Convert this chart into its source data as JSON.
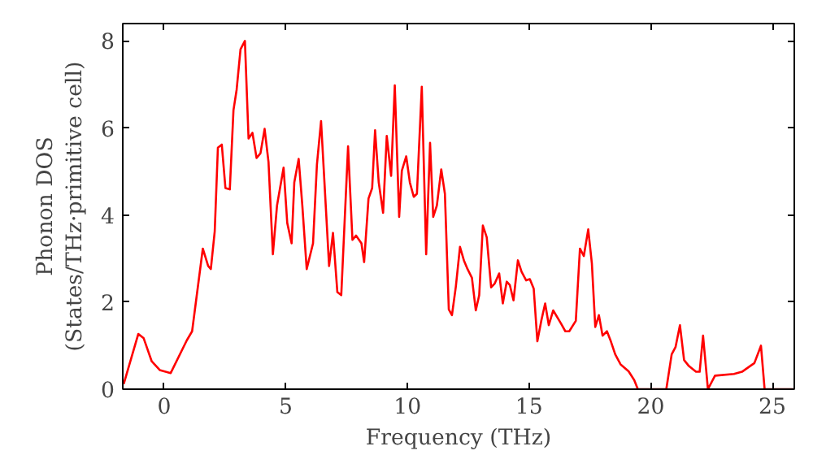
{
  "chart_data": {
    "type": "line",
    "xlabel": "Frequency (THz)",
    "ylabel": "Phonon DOS\n(States/THz·primitive cell)",
    "x": [
      -1.66,
      -1.06,
      -0.84,
      -0.51,
      -0.18,
      0.27,
      0.93,
      1.15,
      1.59,
      1.81,
      1.92,
      2.08,
      2.21,
      2.37,
      2.52,
      2.7,
      2.85,
      2.98,
      3.14,
      3.32,
      3.47,
      3.63,
      3.8,
      3.96,
      4.13,
      4.29,
      4.47,
      4.64,
      4.91,
      5.06,
      5.24,
      5.35,
      5.53,
      5.68,
      5.86,
      6.12,
      6.28,
      6.45,
      6.78,
      6.94,
      7.12,
      7.28,
      7.56,
      7.74,
      7.89,
      8.11,
      8.22,
      8.4,
      8.55,
      8.67,
      8.82,
      9.0,
      9.15,
      9.33,
      9.48,
      9.66,
      9.77,
      9.95,
      10.1,
      10.26,
      10.39,
      10.59,
      10.77,
      10.93,
      11.06,
      11.21,
      11.39,
      11.54,
      11.7,
      11.83,
      11.99,
      12.16,
      12.32,
      12.47,
      12.65,
      12.81,
      12.95,
      13.1,
      13.26,
      13.44,
      13.59,
      13.77,
      13.92,
      14.08,
      14.21,
      14.36,
      14.54,
      14.69,
      14.88,
      15.03,
      15.19,
      15.34,
      15.5,
      15.66,
      15.81,
      15.99,
      16.32,
      16.49,
      16.65,
      16.92,
      17.09,
      17.25,
      17.43,
      17.58,
      17.72,
      17.87,
      18.02,
      18.2,
      18.36,
      18.54,
      18.76,
      19.09,
      19.32,
      19.47,
      20.64,
      20.86,
      21.02,
      21.2,
      21.37,
      21.57,
      21.86,
      22.01,
      22.15,
      22.35,
      22.64,
      23.42,
      23.75,
      24.08,
      24.26,
      24.53,
      24.68,
      25.86
    ],
    "series": [
      {
        "color": "#ff0000",
        "values": [
          0.12,
          1.27,
          1.17,
          0.64,
          0.44,
          0.37,
          1.12,
          1.33,
          3.23,
          2.83,
          2.76,
          3.63,
          5.55,
          5.62,
          4.62,
          4.59,
          6.41,
          6.88,
          7.81,
          8.0,
          5.76,
          5.89,
          5.31,
          5.42,
          5.98,
          5.22,
          3.1,
          4.22,
          5.09,
          3.82,
          3.35,
          4.75,
          5.29,
          4.22,
          2.76,
          3.35,
          5.16,
          6.16,
          2.83,
          3.59,
          2.23,
          2.16,
          5.58,
          3.43,
          3.53,
          3.35,
          2.92,
          4.38,
          4.62,
          5.95,
          4.75,
          4.05,
          5.82,
          4.9,
          6.98,
          3.96,
          5.02,
          5.35,
          4.75,
          4.42,
          4.49,
          6.95,
          3.1,
          5.66,
          3.96,
          4.22,
          5.05,
          4.49,
          1.83,
          1.7,
          2.36,
          3.27,
          2.96,
          2.76,
          2.56,
          1.81,
          2.16,
          3.76,
          3.49,
          2.34,
          2.43,
          2.66,
          1.97,
          2.47,
          2.39,
          2.04,
          2.96,
          2.7,
          2.5,
          2.53,
          2.31,
          1.1,
          1.57,
          1.97,
          1.47,
          1.81,
          1.5,
          1.33,
          1.33,
          1.57,
          3.23,
          3.06,
          3.67,
          2.89,
          1.43,
          1.7,
          1.23,
          1.33,
          1.1,
          0.8,
          0.57,
          0.41,
          0.21,
          0,
          0,
          0.8,
          0.97,
          1.47,
          0.67,
          0.53,
          0.4,
          0.4,
          1.23,
          0,
          0.31,
          0.35,
          0.4,
          0.53,
          0.6,
          1.0,
          0,
          0
        ]
      }
    ],
    "xlim": [
      -1.7,
      25.9
    ],
    "ylim": [
      0,
      8.4
    ],
    "xticks": [
      0,
      5,
      10,
      15,
      20,
      25
    ],
    "yticks": [
      0,
      2,
      4,
      6,
      8
    ],
    "grid": false,
    "marker": "none",
    "line_style": "solid"
  }
}
